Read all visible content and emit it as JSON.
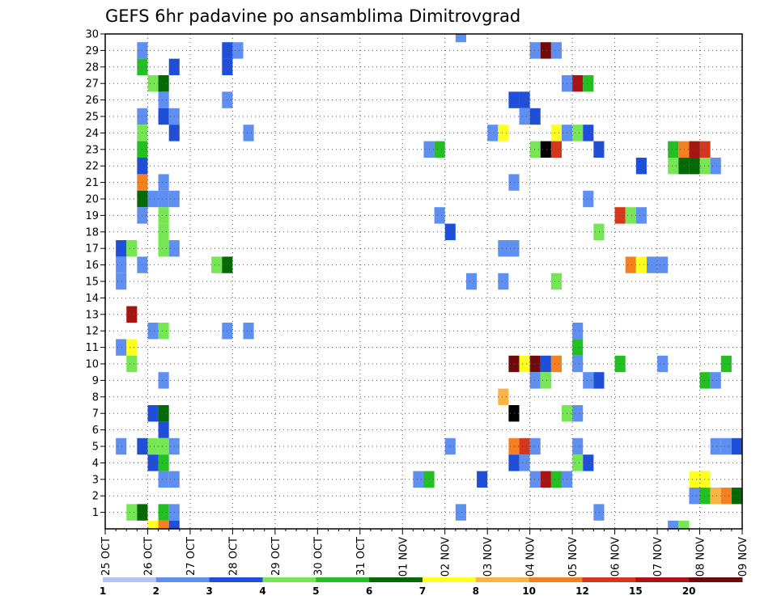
{
  "chart_data": {
    "type": "heatmap",
    "title": "GEFS 6hr padavine po ansamblima Dimitrovgrad",
    "xlabel": "",
    "ylabel": "",
    "x_ticks": [
      "25 OCT",
      "26 OCT",
      "27 OCT",
      "28 OCT",
      "29 OCT",
      "30 OCT",
      "31 OCT",
      "01 NOV",
      "02 NOV",
      "03 NOV",
      "04 NOV",
      "05 NOV",
      "06 NOV",
      "07 NOV",
      "08 NOV",
      "09 NOV"
    ],
    "xlim": [
      0,
      15
    ],
    "y_ticks": [
      1,
      2,
      3,
      4,
      5,
      6,
      7,
      8,
      9,
      10,
      11,
      12,
      13,
      14,
      15,
      16,
      17,
      18,
      19,
      20,
      21,
      22,
      23,
      24,
      25,
      26,
      27,
      28,
      29,
      30
    ],
    "ylim": [
      0,
      30
    ],
    "x_step": 0.25,
    "grid": true,
    "legend": {
      "placement": "bottom",
      "colors": [
        "#b4c7f3",
        "#5f8ff0",
        "#1f4fd8",
        "#77e655",
        "#22c022",
        "#056a05",
        "#ffff22",
        "#fab444",
        "#f58020",
        "#d8361c",
        "#a81414",
        "#700a0a"
      ],
      "labels": [
        "1",
        "2",
        "3",
        "4",
        "5",
        "6",
        "7",
        "8",
        "10",
        "12",
        "15",
        "20"
      ]
    },
    "cells": [
      [
        0.75,
        29,
        1
      ],
      [
        2.75,
        29,
        2
      ],
      [
        3,
        29,
        1
      ],
      [
        10,
        29,
        1
      ],
      [
        10.25,
        29,
        11
      ],
      [
        10.5,
        29,
        1
      ],
      [
        0.75,
        28,
        4
      ],
      [
        1.5,
        28,
        2
      ],
      [
        2.75,
        28,
        2
      ],
      [
        1,
        27,
        3
      ],
      [
        1.25,
        27,
        5
      ],
      [
        10.75,
        27,
        1
      ],
      [
        11,
        27,
        10
      ],
      [
        11.25,
        27,
        4
      ],
      [
        1.25,
        26,
        1
      ],
      [
        2.75,
        26,
        1
      ],
      [
        9.5,
        26,
        2
      ],
      [
        9.75,
        26,
        2
      ],
      [
        0.75,
        25,
        1
      ],
      [
        1.25,
        25,
        2
      ],
      [
        1.5,
        25,
        1
      ],
      [
        9.75,
        25,
        1
      ],
      [
        10,
        25,
        2
      ],
      [
        0.75,
        24,
        3
      ],
      [
        1.5,
        24,
        2
      ],
      [
        3.25,
        24,
        1
      ],
      [
        9,
        24,
        1
      ],
      [
        9.25,
        24,
        6
      ],
      [
        10.5,
        24,
        6
      ],
      [
        10.75,
        24,
        1
      ],
      [
        11,
        24,
        3
      ],
      [
        11.25,
        24,
        2
      ],
      [
        0.75,
        23,
        4
      ],
      [
        7.5,
        23,
        1
      ],
      [
        7.75,
        23,
        4
      ],
      [
        10,
        23,
        3
      ],
      [
        10.25,
        23,
        12
      ],
      [
        10.5,
        23,
        9
      ],
      [
        11.5,
        23,
        2
      ],
      [
        13.25,
        23,
        4
      ],
      [
        13.5,
        23,
        8
      ],
      [
        13.75,
        23,
        10
      ],
      [
        14,
        23,
        9
      ],
      [
        0.75,
        22,
        2
      ],
      [
        12.5,
        22,
        2
      ],
      [
        13.25,
        22,
        3
      ],
      [
        13.5,
        22,
        5
      ],
      [
        13.75,
        22,
        5
      ],
      [
        14,
        22,
        3
      ],
      [
        14.25,
        22,
        1
      ],
      [
        0.75,
        21,
        8
      ],
      [
        1.25,
        21,
        1
      ],
      [
        9.5,
        21,
        1
      ],
      [
        0.75,
        20,
        5
      ],
      [
        1,
        20,
        1
      ],
      [
        1.25,
        20,
        1
      ],
      [
        1.5,
        20,
        1
      ],
      [
        11.25,
        20,
        1
      ],
      [
        0.75,
        19,
        1
      ],
      [
        1.25,
        19,
        3
      ],
      [
        7.75,
        19,
        1
      ],
      [
        12,
        19,
        9
      ],
      [
        12.25,
        19,
        3
      ],
      [
        12.5,
        19,
        1
      ],
      [
        1.25,
        18,
        3
      ],
      [
        8,
        18,
        2
      ],
      [
        11.5,
        18,
        3
      ],
      [
        0.25,
        17,
        2
      ],
      [
        0.5,
        17,
        3
      ],
      [
        1.25,
        17,
        3
      ],
      [
        1.5,
        17,
        1
      ],
      [
        9.25,
        17,
        1
      ],
      [
        9.5,
        17,
        1
      ],
      [
        0.25,
        16,
        1
      ],
      [
        0.75,
        16,
        1
      ],
      [
        2.5,
        16,
        3
      ],
      [
        2.75,
        16,
        5
      ],
      [
        12.25,
        16,
        8
      ],
      [
        12.5,
        16,
        6
      ],
      [
        12.75,
        16,
        1
      ],
      [
        13,
        16,
        1
      ],
      [
        0.25,
        15,
        1
      ],
      [
        8.5,
        15,
        1
      ],
      [
        9.25,
        15,
        1
      ],
      [
        10.5,
        15,
        3
      ],
      [
        0.5,
        13,
        10
      ],
      [
        1,
        12,
        1
      ],
      [
        1.25,
        12,
        3
      ],
      [
        2.75,
        12,
        1
      ],
      [
        3.25,
        12,
        1
      ],
      [
        11,
        12,
        1
      ],
      [
        0.25,
        11,
        1
      ],
      [
        0.5,
        11,
        6
      ],
      [
        11,
        11,
        4
      ],
      [
        0.5,
        10,
        3
      ],
      [
        9.5,
        10,
        11
      ],
      [
        9.75,
        10,
        6
      ],
      [
        10,
        10,
        11
      ],
      [
        10.25,
        10,
        2
      ],
      [
        10.5,
        10,
        8
      ],
      [
        11,
        10,
        1
      ],
      [
        12,
        10,
        4
      ],
      [
        13,
        10,
        1
      ],
      [
        14.5,
        10,
        4
      ],
      [
        1.25,
        9,
        1
      ],
      [
        10,
        9,
        1
      ],
      [
        10.25,
        9,
        3
      ],
      [
        11.25,
        9,
        1
      ],
      [
        11.5,
        9,
        2
      ],
      [
        14,
        9,
        4
      ],
      [
        14.25,
        9,
        1
      ],
      [
        9.25,
        8,
        7
      ],
      [
        1,
        7,
        2
      ],
      [
        1.25,
        7,
        5
      ],
      [
        9.5,
        7,
        12
      ],
      [
        10.75,
        7,
        3
      ],
      [
        11,
        7,
        1
      ],
      [
        1.25,
        6,
        2
      ],
      [
        0.25,
        5,
        1
      ],
      [
        0.75,
        5,
        2
      ],
      [
        1,
        5,
        3
      ],
      [
        1.25,
        5,
        3
      ],
      [
        1.5,
        5,
        1
      ],
      [
        8,
        5,
        1
      ],
      [
        9.5,
        5,
        8
      ],
      [
        9.75,
        5,
        9
      ],
      [
        10,
        5,
        1
      ],
      [
        11,
        5,
        1
      ],
      [
        14.25,
        5,
        1
      ],
      [
        14.5,
        5,
        1
      ],
      [
        14.75,
        5,
        2
      ],
      [
        1,
        4,
        2
      ],
      [
        1.25,
        4,
        4
      ],
      [
        9.5,
        4,
        2
      ],
      [
        9.75,
        4,
        1
      ],
      [
        11,
        4,
        3
      ],
      [
        11.25,
        4,
        2
      ],
      [
        1.25,
        3,
        1
      ],
      [
        1.5,
        3,
        1
      ],
      [
        7.25,
        3,
        1
      ],
      [
        7.5,
        3,
        4
      ],
      [
        8.75,
        3,
        2
      ],
      [
        10,
        3,
        1
      ],
      [
        10.25,
        3,
        10
      ],
      [
        10.5,
        3,
        4
      ],
      [
        10.75,
        3,
        1
      ],
      [
        13.75,
        3,
        6
      ],
      [
        14,
        3,
        6
      ],
      [
        13.75,
        2,
        1
      ],
      [
        14,
        2,
        4
      ],
      [
        14.25,
        2,
        7
      ],
      [
        14.5,
        2,
        8
      ],
      [
        14.75,
        2,
        5
      ],
      [
        0.5,
        1,
        3
      ],
      [
        0.75,
        1,
        5
      ],
      [
        1.25,
        1,
        4
      ],
      [
        1.5,
        1,
        1
      ],
      [
        8.25,
        1,
        1
      ],
      [
        11.5,
        1,
        1
      ],
      [
        1,
        0,
        6
      ],
      [
        1.25,
        0,
        8
      ],
      [
        1.5,
        0,
        2
      ],
      [
        13.25,
        0,
        1
      ],
      [
        13.5,
        0,
        3
      ],
      [
        8.25,
        30,
        1
      ]
    ]
  }
}
